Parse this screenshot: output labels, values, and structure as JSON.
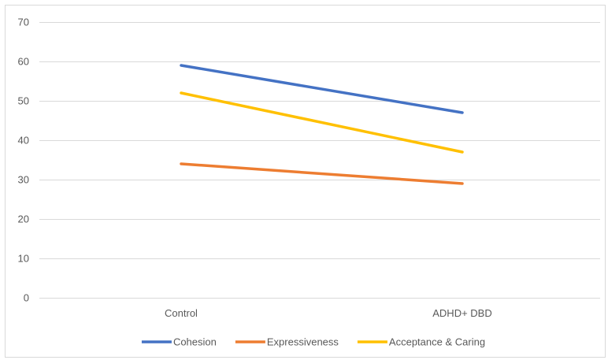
{
  "chart_data": {
    "type": "line",
    "categories": [
      "Control",
      "ADHD+ DBD"
    ],
    "series": [
      {
        "name": "Cohesion",
        "values": [
          59,
          47
        ],
        "color": "#4472C4"
      },
      {
        "name": "Expressiveness",
        "values": [
          34,
          29
        ],
        "color": "#ED7D31"
      },
      {
        "name": "Acceptance & Caring",
        "values": [
          52,
          37
        ],
        "color": "#FFC000"
      }
    ],
    "ylim": [
      0,
      70
    ],
    "yticks": [
      0,
      10,
      20,
      30,
      40,
      50,
      60,
      70
    ],
    "grid": true,
    "legend": "bottom",
    "gridline_color": "#d9d9d9"
  }
}
